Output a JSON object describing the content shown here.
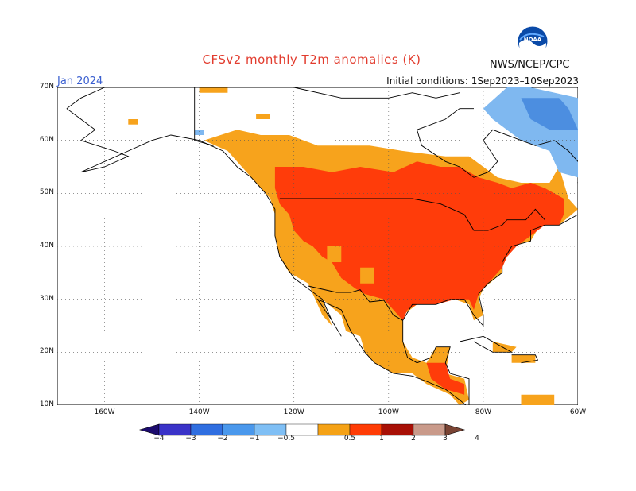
{
  "title": "CFSv2 monthly T2m anomalies (K)",
  "target_month": "Jan 2024",
  "initial_conditions": "Initial conditions: 1Sep2023–10Sep2023",
  "agency": "NWS/NCEP/CPC",
  "logo_text": "NOAA",
  "map": {
    "lat_labels": [
      "70N",
      "60N",
      "50N",
      "40N",
      "30N",
      "20N",
      "10N"
    ],
    "lat_values": [
      70,
      60,
      50,
      40,
      30,
      20,
      10
    ],
    "lon_labels": [
      "160W",
      "140W",
      "120W",
      "100W",
      "80W",
      "60W"
    ],
    "lon_values": [
      -160,
      -140,
      -120,
      -100,
      -80,
      -60
    ],
    "lon_range": [
      -170,
      -60
    ],
    "lat_range": [
      10,
      70
    ],
    "grid": "dotted"
  },
  "colorbar": {
    "labels": [
      "−4",
      "−3",
      "−2",
      "−1",
      "−0.5",
      "0.5",
      "1",
      "2",
      "3",
      "4"
    ],
    "colors": [
      "#1c0b6e",
      "#3a33c8",
      "#2f6ee0",
      "#4a98ec",
      "#7fbff5",
      "#ffffff",
      "#f5a216",
      "#ff3c05",
      "#a81006",
      "#c99a8a",
      "#7a4434"
    ]
  },
  "colors": {
    "orange": "#f7a31c",
    "red": "#ff3c0a",
    "light_blue": "#7fb8f0",
    "mid_blue": "#4c8ee0"
  }
}
